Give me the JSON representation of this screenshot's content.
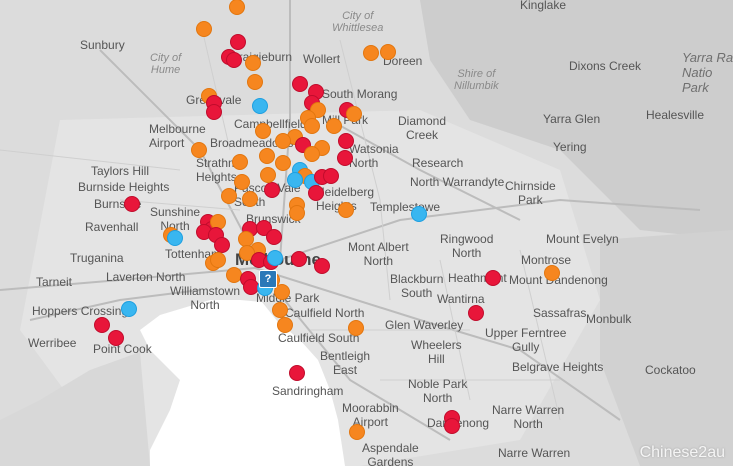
{
  "map": {
    "labels": {
      "kinglake": "Kinglake",
      "city_of_whittlesea": "City of\nWhittlesea",
      "sunbury": "Sunbury",
      "city_of_hume": "City of\nHume",
      "craigieburn": "Craigieburn",
      "wollert": "Wollert",
      "doreen": "Doreen",
      "shire_of_nillumbik": "Shire of\nNillumbik",
      "dixons_creek": "Dixons Creek",
      "yarra_ranges_park": "Yarra Ra\nNatio\nPark",
      "greenvale": "Greenvale",
      "south_morang": "South Morang",
      "mill_park": "Mill Park",
      "campbellfield": "Campbellfield",
      "diamond_creek": "Diamond\nCreek",
      "melbourne_airport": "Melbourne\nAirport",
      "broadmeadows": "Broadmeadows",
      "watsonia_north": "Watsonia\nNorth",
      "yarra_glen": "Yarra Glen",
      "healesville": "Healesville",
      "yering": "Yering",
      "research": "Research",
      "taylors_hill": "Taylors Hill",
      "strathmore_heights": "Strathm\nHeights",
      "north_warrandyte": "North Warrandyte",
      "chirnside_park": "Chirnside\nPark",
      "burnside_heights": "Burnside Heights",
      "pascoe_vale_south": "Pascoe Vale\nSouth",
      "heidelberg_heights": "Heidelberg\nHeights",
      "burnside": "Burnside",
      "templestowe": "Templestowe",
      "sunshine_north": "Sunshine\nNorth",
      "brunswick": "Brunswick",
      "ravenhall": "Ravenhall",
      "ringwood_north": "Ringwood\nNorth",
      "mount_evelyn": "Mount Evelyn",
      "mont_albert_north": "Mont Albert\nNorth",
      "truganina": "Truganina",
      "tottenham": "Tottenham",
      "melbourne": "Melbourne",
      "montrose": "Montrose",
      "laverton_north": "Laverton North",
      "heathmont": "Heathmont",
      "mount_dandenong": "Mount Dandenong",
      "tarneit": "Tarneit",
      "williamstown_north": "Williamstown\nNorth",
      "blackburn_south": "Blackburn\nSouth",
      "sassafras": "Sassafras",
      "middle_park": "Middle Park",
      "caulfield_north": "Caulfield North",
      "wantirna": "Wantirna",
      "hoppers_crossing": "Hoppers Crossing",
      "monbulk": "Monbulk",
      "upper_ferntree_gully": "Upper Ferntree\nGully",
      "glen_waverley": "Glen Waverley",
      "werribee": "Werribee",
      "caulfield_south": "Caulfield South",
      "point_cook": "Point Cook",
      "wheelers_hill": "Wheelers\nHill",
      "bentleigh_east": "Bentleigh\nEast",
      "belgrave_heights": "Belgrave Heights",
      "cockatoo": "Cockatoo",
      "sandringham": "Sandringham",
      "noble_park_north": "Noble Park\nNorth",
      "narre_warren_north": "Narre Warren\nNorth",
      "moorabbin_airport": "Moorabbin\nAirport",
      "dandenong": "Dandenong",
      "aspendale_gardens": "Aspendale\nGardens",
      "narre_warren": "Narre Warren"
    },
    "colors": {
      "red": "#e8163a",
      "orange": "#f6861f",
      "blue": "#39b6f0",
      "cluster": "#2a78b8"
    },
    "cluster_label": "?",
    "watermark": "Chinese2au",
    "marker_types": [
      "red",
      "orange",
      "blue"
    ]
  }
}
